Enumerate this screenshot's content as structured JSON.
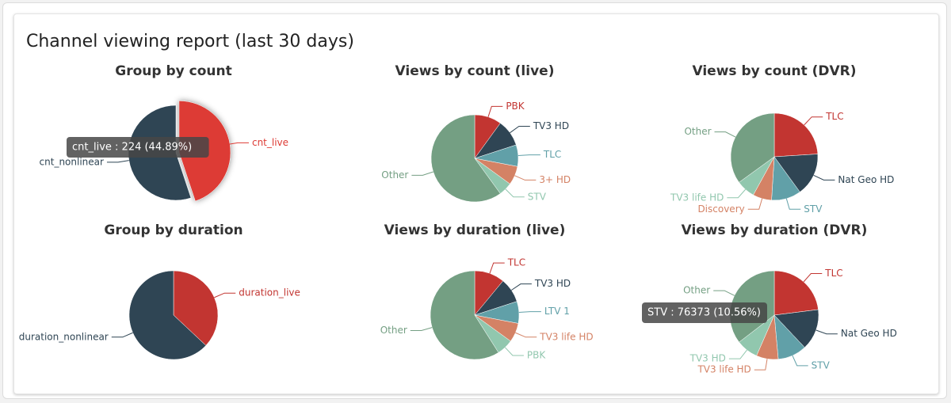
{
  "report": {
    "title": "Channel viewing report (last 30 days)"
  },
  "colors": {
    "red": "#c23531",
    "dark": "#2f4554",
    "teal": "#61a0a8",
    "orange": "#d48265",
    "green": "#749f83",
    "mint": "#91c7ae",
    "highlight": "#dd3b35"
  },
  "chart_data": [
    {
      "type": "pie",
      "title": "Group by count",
      "slices": [
        {
          "label": "cnt_live",
          "value": 224,
          "percent": 44.89,
          "color": "#dd3b35",
          "highlighted": true
        },
        {
          "label": "cnt_nonlinear",
          "value": 275,
          "percent": 55.11,
          "color": "#2f4554"
        }
      ],
      "tooltip": "cnt_live : 224 (44.89%)"
    },
    {
      "type": "pie",
      "title": "Views by count (live)",
      "slices": [
        {
          "label": "PBK",
          "percent": 10,
          "color": "#c23531"
        },
        {
          "label": "TV3 HD",
          "percent": 10,
          "color": "#2f4554"
        },
        {
          "label": "TLC",
          "percent": 8,
          "color": "#61a0a8"
        },
        {
          "label": "3+ HD",
          "percent": 7,
          "color": "#d48265"
        },
        {
          "label": "STV",
          "percent": 5,
          "color": "#91c7ae"
        },
        {
          "label": "Other",
          "percent": 60,
          "color": "#749f83"
        }
      ]
    },
    {
      "type": "pie",
      "title": "Views by count (DVR)",
      "slices": [
        {
          "label": "TLC",
          "percent": 24,
          "color": "#c23531"
        },
        {
          "label": "Nat Geo HD",
          "percent": 16,
          "color": "#2f4554"
        },
        {
          "label": "STV",
          "percent": 11,
          "color": "#61a0a8"
        },
        {
          "label": "Discovery",
          "percent": 7,
          "color": "#d48265"
        },
        {
          "label": "TV3 life HD",
          "percent": 7,
          "color": "#91c7ae"
        },
        {
          "label": "Other",
          "percent": 35,
          "color": "#749f83"
        }
      ]
    },
    {
      "type": "pie",
      "title": "Group by duration",
      "slices": [
        {
          "label": "duration_live",
          "percent": 37,
          "color": "#c23531"
        },
        {
          "label": "duration_nonlinear",
          "percent": 63,
          "color": "#2f4554"
        }
      ]
    },
    {
      "type": "pie",
      "title": "Views by duration (live)",
      "slices": [
        {
          "label": "TLC",
          "percent": 11,
          "color": "#c23531"
        },
        {
          "label": "TV3 HD",
          "percent": 9,
          "color": "#2f4554"
        },
        {
          "label": "LTV 1",
          "percent": 8,
          "color": "#61a0a8"
        },
        {
          "label": "TV3 life HD",
          "percent": 7,
          "color": "#d48265"
        },
        {
          "label": "PBK",
          "percent": 6,
          "color": "#91c7ae"
        },
        {
          "label": "Other",
          "percent": 59,
          "color": "#749f83"
        }
      ]
    },
    {
      "type": "pie",
      "title": "Views by duration (DVR)",
      "slices": [
        {
          "label": "TLC",
          "percent": 23,
          "color": "#c23531"
        },
        {
          "label": "Nat Geo HD",
          "percent": 15,
          "color": "#2f4554"
        },
        {
          "label": "STV",
          "value": 76373,
          "percent": 10.56,
          "color": "#61a0a8"
        },
        {
          "label": "TV3 life HD",
          "percent": 8,
          "color": "#d48265"
        },
        {
          "label": "TV3 HD",
          "percent": 8,
          "color": "#91c7ae"
        },
        {
          "label": "Other",
          "percent": 35.44,
          "color": "#749f83"
        }
      ],
      "tooltip": "STV : 76373 (10.56%)"
    }
  ]
}
